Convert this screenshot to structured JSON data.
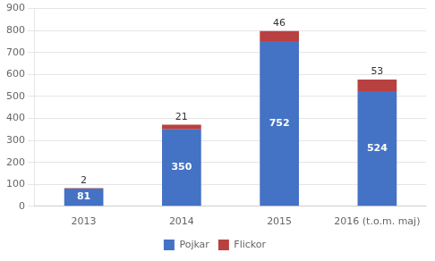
{
  "chart_data": {
    "type": "bar",
    "stacked": true,
    "categories": [
      "2013",
      "2014",
      "2015",
      "2016 (t.o.m. maj)"
    ],
    "series": [
      {
        "name": "Pojkar",
        "color": "#4472C4",
        "values": [
          81,
          350,
          752,
          524
        ]
      },
      {
        "name": "Flickor",
        "color": "#B94040",
        "values": [
          2,
          21,
          46,
          53
        ]
      }
    ],
    "ylim": [
      0,
      900
    ],
    "yticks": [
      0,
      100,
      200,
      300,
      400,
      500,
      600,
      700,
      800,
      900
    ],
    "grid": true,
    "legend": "bottom",
    "data_labels": true
  }
}
